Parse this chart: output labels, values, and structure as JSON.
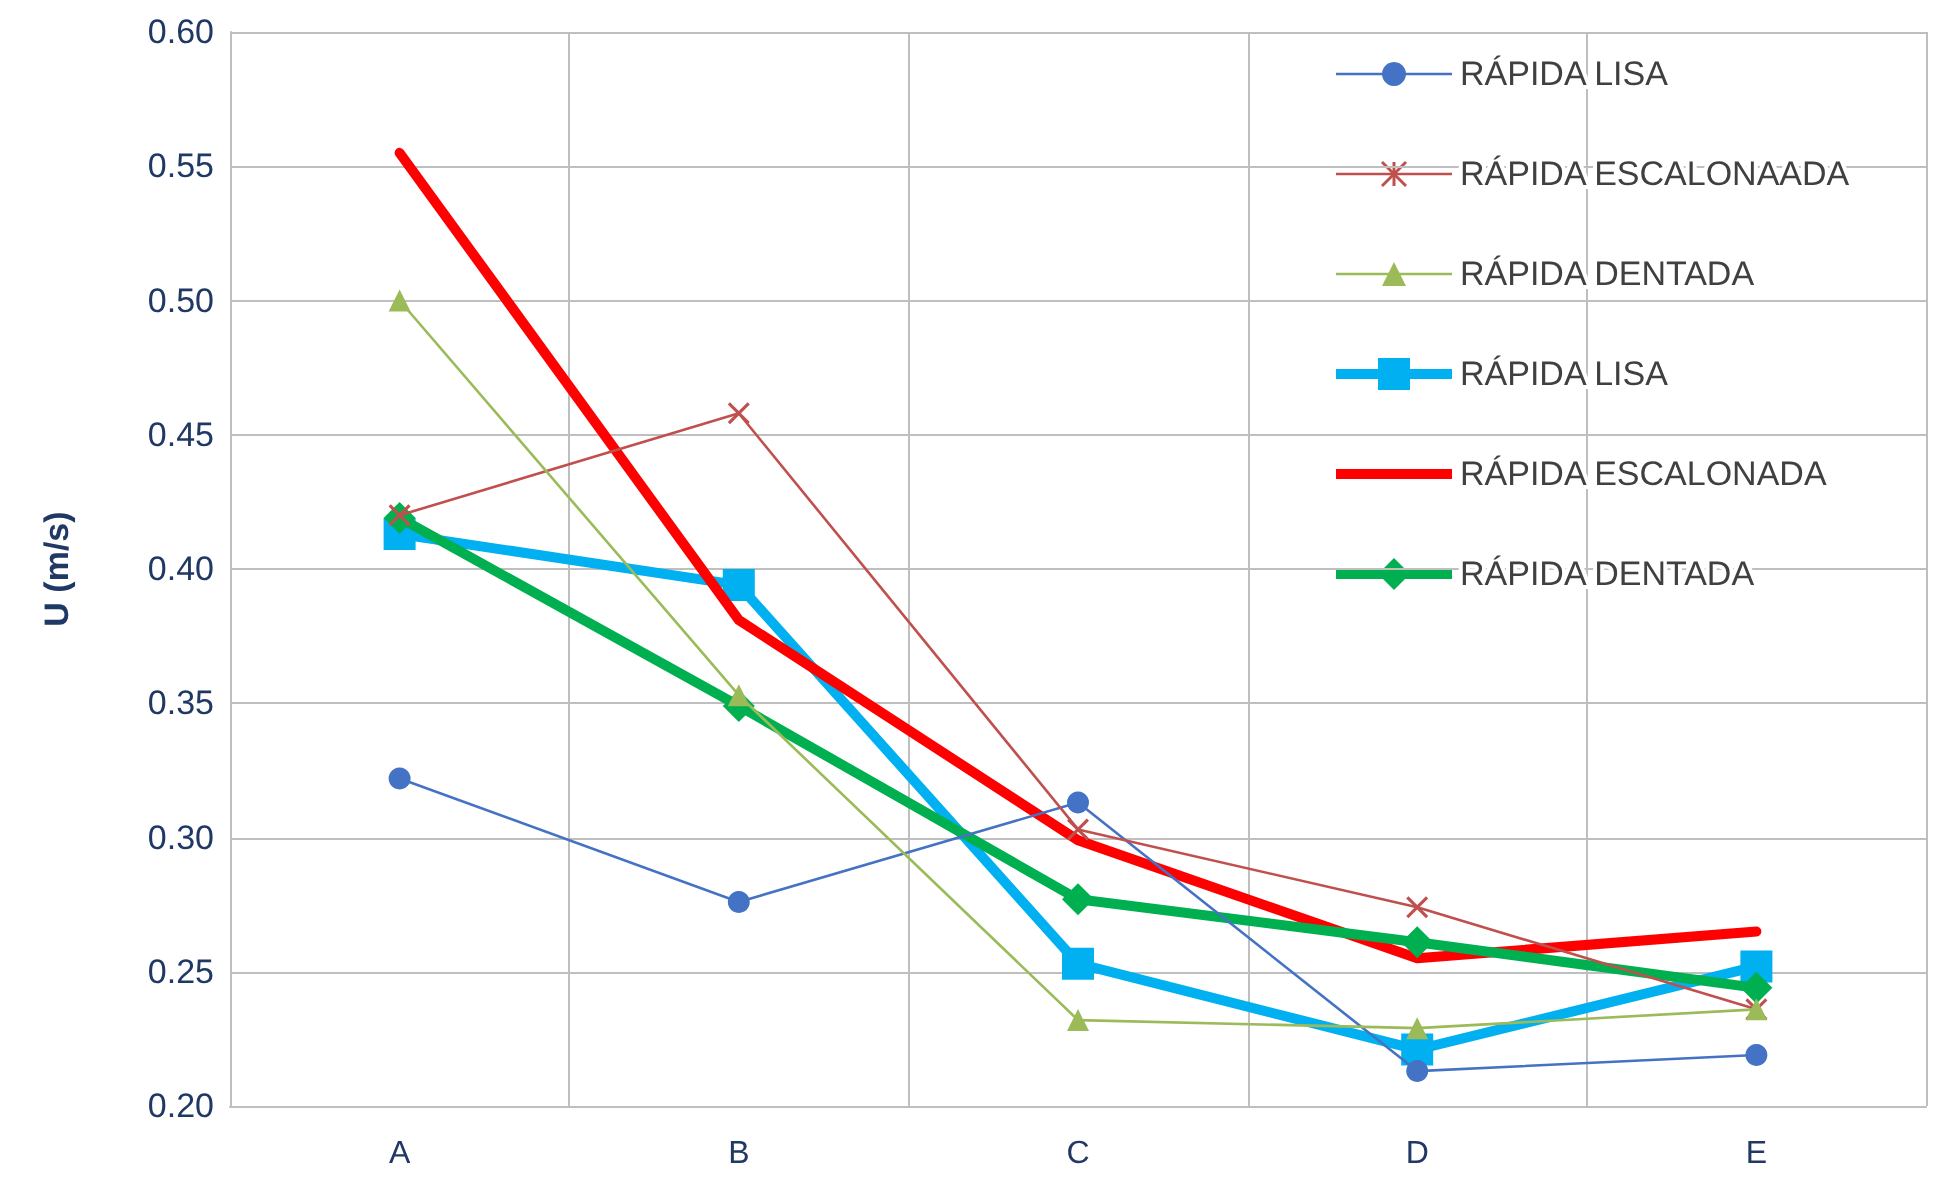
{
  "chart_data": {
    "type": "line",
    "ylabel": "U (m/s)",
    "categories": [
      "A",
      "B",
      "C",
      "D",
      "E"
    ],
    "ylim": [
      0.2,
      0.6
    ],
    "yticks": [
      {
        "value": 0.2,
        "label": "0.20"
      },
      {
        "value": 0.25,
        "label": "0.25"
      },
      {
        "value": 0.3,
        "label": "0.30"
      },
      {
        "value": 0.35,
        "label": "0.35"
      },
      {
        "value": 0.4,
        "label": "0.40"
      },
      {
        "value": 0.45,
        "label": "0.45"
      },
      {
        "value": 0.5,
        "label": "0.50"
      },
      {
        "value": 0.55,
        "label": "0.55"
      },
      {
        "value": 0.6,
        "label": "0.60"
      }
    ],
    "grid": true,
    "legend": "top right",
    "series": [
      {
        "name": "RÁPIDA LISA",
        "color": "#4472c4",
        "marker": "circle",
        "values": [
          0.322,
          0.276,
          0.313,
          0.213,
          0.219
        ]
      },
      {
        "name": "RÁPIDA ESCALONAADA",
        "color": "#c0504d",
        "marker": "cross",
        "values": [
          0.42,
          0.458,
          0.303,
          0.274,
          0.236
        ]
      },
      {
        "name": "RÁPIDA DENTADA",
        "color": "#9bbb59",
        "marker": "triangle",
        "values": [
          0.5,
          0.353,
          0.232,
          0.229,
          0.236
        ]
      },
      {
        "name": "RÁPIDA LISA",
        "color": "#00b0f0",
        "marker": "square",
        "values": [
          0.413,
          0.394,
          0.253,
          0.221,
          0.252
        ]
      },
      {
        "name": "RÁPIDA ESCALONADA",
        "color": "#ff0000",
        "marker": "none",
        "values": [
          0.555,
          0.381,
          0.299,
          0.255,
          0.265
        ]
      },
      {
        "name": "RÁPIDA DENTADA",
        "color": "#00b050",
        "marker": "diamond",
        "values": [
          0.419,
          0.349,
          0.277,
          0.261,
          0.244
        ]
      }
    ]
  }
}
